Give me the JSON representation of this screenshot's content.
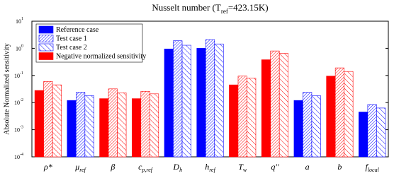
{
  "chart_data": {
    "type": "bar",
    "title": [
      "Nusselt number (T",
      "ref",
      "=423.15K)"
    ],
    "y_label": "Absolute Normalized sensitivity",
    "categories": [
      {
        "base": "ρ*"
      },
      {
        "base": "μ",
        "sub": "ref"
      },
      {
        "base": "β"
      },
      {
        "base": "c",
        "sub": "p,ref"
      },
      {
        "base": "D",
        "sub": "h"
      },
      {
        "base": "h",
        "sub": "ref"
      },
      {
        "base": "T",
        "sub": "w"
      },
      {
        "base": "q''"
      },
      {
        "base": "a"
      },
      {
        "base": "b"
      },
      {
        "base": "f",
        "sub": "local"
      }
    ],
    "negative": [
      true,
      false,
      true,
      true,
      false,
      false,
      true,
      true,
      false,
      true,
      false
    ],
    "negative_label": "Negative normalized sensitivity",
    "negative_color": "#ff0000",
    "series": [
      {
        "name": "Reference case",
        "color": "#0000ff",
        "pattern": "solid",
        "values": [
          0.028,
          0.012,
          0.014,
          0.014,
          0.95,
          1.0,
          0.045,
          0.38,
          0.012,
          0.095,
          0.0045
        ]
      },
      {
        "name": "Test case 1",
        "color": "#0000ff",
        "pattern": "hatch-dense",
        "values": [
          0.06,
          0.024,
          0.032,
          0.026,
          1.9,
          2.1,
          0.095,
          0.8,
          0.024,
          0.19,
          0.0085
        ]
      },
      {
        "name": "Test case 2",
        "color": "#0000ff",
        "pattern": "hatch-sparse",
        "values": [
          0.045,
          0.018,
          0.023,
          0.021,
          1.3,
          1.45,
          0.08,
          0.65,
          0.018,
          0.14,
          0.0063
        ]
      }
    ],
    "log_scale": true,
    "ylim": [
      0.0001,
      10
    ],
    "yticks": [
      {
        "value": 0.0001,
        "label": "10",
        "exponent": "-4"
      },
      {
        "value": 0.001,
        "label": "10",
        "exponent": "-3"
      },
      {
        "value": 0.01,
        "label": "10",
        "exponent": "-2"
      },
      {
        "value": 0.1,
        "label": "10",
        "exponent": "-1"
      },
      {
        "value": 1,
        "label": "10",
        "exponent": "0"
      },
      {
        "value": 10,
        "label": "10",
        "exponent": "1"
      }
    ],
    "legend": "top-left"
  }
}
